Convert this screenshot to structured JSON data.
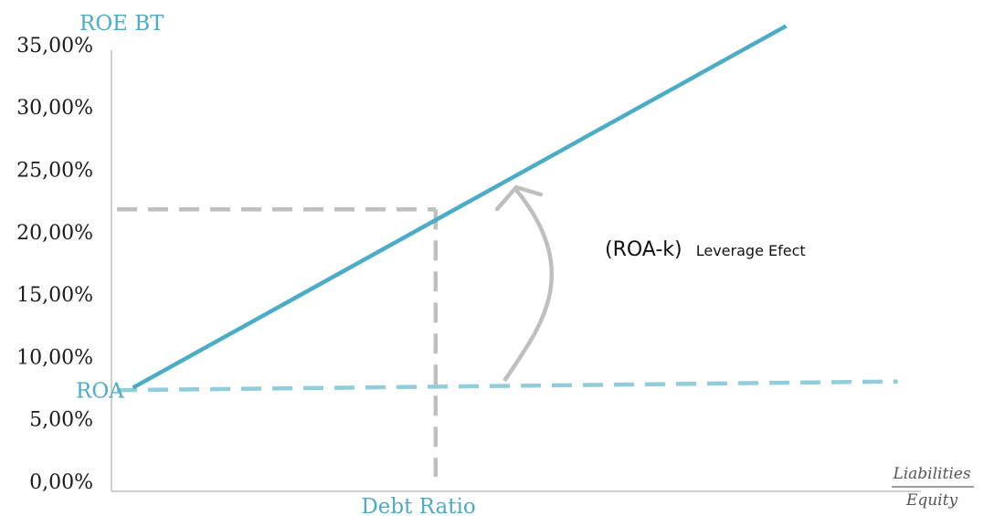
{
  "chart_data": {
    "type": "line",
    "title": "",
    "ylabel": "ROE BT",
    "xlabel": "Debt Ratio",
    "ylim": [
      0,
      35
    ],
    "yticks": [
      "0,00%",
      "5,00%",
      "10,00%",
      "15,00%",
      "20,00%",
      "25,00%",
      "30,00%",
      "35,00%"
    ],
    "series": [
      {
        "values": [
          {
            "x": 0.02,
            "y": 7.5
          },
          {
            "x": 0.84,
            "y": 36.5
          }
        ],
        "color": "#4bacc6",
        "style": "solid"
      },
      {
        "name": "ROA",
        "values": [
          {
            "x": 0.0,
            "y": 7.3
          },
          {
            "x": 0.98,
            "y": 8.0
          }
        ],
        "color": "#92cddc",
        "style": "dashed"
      }
    ],
    "reference_point": {
      "x": 0.4,
      "y": 21.8
    },
    "grid": false,
    "annotations": {
      "leverage_formula": "(ROA-k)",
      "leverage_label": "Leverage Efect",
      "x_fraction_numerator": "Liabilities",
      "x_fraction_denominator": "Equity"
    }
  }
}
